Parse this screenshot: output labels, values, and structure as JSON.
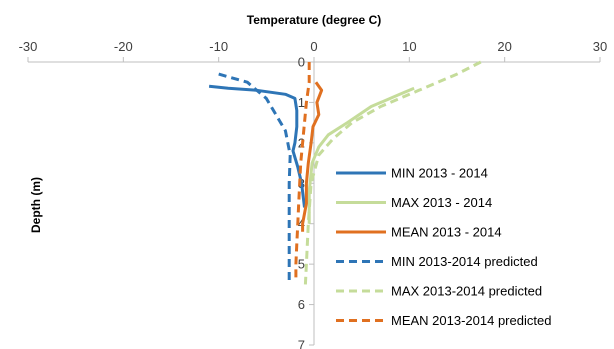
{
  "chart_data": {
    "type": "line",
    "title": "",
    "xlabel": "Temperature (degree C)",
    "ylabel": "Depth (m)",
    "xlim": [
      -30,
      30
    ],
    "ylim": [
      0,
      7
    ],
    "x_ticks": [
      "-30",
      "-20",
      "-10",
      "0",
      "10",
      "20",
      "30"
    ],
    "y_ticks": [
      "0",
      "1",
      "2",
      "3",
      "4",
      "5",
      "6",
      "7"
    ],
    "x_axis_position": "top",
    "y_axis_inverted": true,
    "grid": false,
    "legend_position": "right",
    "series": [
      {
        "name": "MIN 2013 - 2014",
        "color": "#2e75b6",
        "dash": "solid",
        "points": [
          [
            -11,
            0.6
          ],
          [
            -9,
            0.65
          ],
          [
            -6,
            0.7
          ],
          [
            -3,
            0.8
          ],
          [
            -2,
            0.9
          ],
          [
            -1.8,
            1.2
          ],
          [
            -1.8,
            1.6
          ],
          [
            -2.0,
            2.0
          ],
          [
            -2.2,
            2.2
          ],
          [
            -1.7,
            2.6
          ],
          [
            -1.3,
            3.0
          ],
          [
            -1.0,
            3.6
          ]
        ]
      },
      {
        "name": "MAX  2013 - 2014",
        "color": "#c5dc9a",
        "dash": "solid",
        "points": [
          [
            10.5,
            0.65
          ],
          [
            9,
            0.8
          ],
          [
            6,
            1.1
          ],
          [
            3.5,
            1.5
          ],
          [
            1.5,
            1.8
          ],
          [
            0.5,
            2.1
          ],
          [
            -0.2,
            2.5
          ],
          [
            -0.5,
            3.2
          ],
          [
            -0.5,
            4.0
          ]
        ]
      },
      {
        "name": "MEAN  2013 - 2014",
        "color": "#e07020",
        "dash": "solid",
        "points": [
          [
            0.2,
            0.5
          ],
          [
            0.8,
            0.7
          ],
          [
            0.3,
            1.0
          ],
          [
            0.5,
            1.3
          ],
          [
            -0.1,
            1.6
          ],
          [
            -0.3,
            2.0
          ],
          [
            -0.6,
            2.5
          ],
          [
            -0.8,
            3.0
          ],
          [
            -0.8,
            3.5
          ],
          [
            -1.2,
            4.0
          ],
          [
            -1.2,
            4.2
          ]
        ]
      },
      {
        "name": "MIN 2013-2014 predicted",
        "color": "#2e75b6",
        "dash": "dashed",
        "points": [
          [
            -10,
            0.3
          ],
          [
            -7,
            0.5
          ],
          [
            -5,
            0.9
          ],
          [
            -4,
            1.3
          ],
          [
            -3,
            1.7
          ],
          [
            -2.5,
            2.3
          ],
          [
            -2.6,
            3.0
          ],
          [
            -2.6,
            3.8
          ],
          [
            -2.6,
            4.6
          ],
          [
            -2.6,
            5.4
          ]
        ]
      },
      {
        "name": "MAX 2013-2014 predicted",
        "color": "#c5dc9a",
        "dash": "dashed",
        "points": [
          [
            17.5,
            0.0
          ],
          [
            15,
            0.3
          ],
          [
            11,
            0.7
          ],
          [
            7,
            1.1
          ],
          [
            4,
            1.5
          ],
          [
            2,
            1.9
          ],
          [
            0.5,
            2.3
          ],
          [
            -0.3,
            3.0
          ],
          [
            -0.6,
            4.0
          ],
          [
            -0.8,
            5.0
          ],
          [
            -0.9,
            5.5
          ]
        ]
      },
      {
        "name": "MEAN 2013-2014 predicted",
        "color": "#e07020",
        "dash": "dashed",
        "points": [
          [
            -0.5,
            0.0
          ],
          [
            -0.5,
            0.5
          ],
          [
            -0.8,
            1.0
          ],
          [
            -1.0,
            1.5
          ],
          [
            -1.2,
            2.0
          ],
          [
            -1.4,
            2.5
          ],
          [
            -1.5,
            3.0
          ],
          [
            -1.6,
            3.5
          ],
          [
            -1.7,
            4.0
          ],
          [
            -1.8,
            4.5
          ],
          [
            -1.9,
            5.0
          ],
          [
            -1.9,
            5.4
          ]
        ]
      }
    ]
  }
}
